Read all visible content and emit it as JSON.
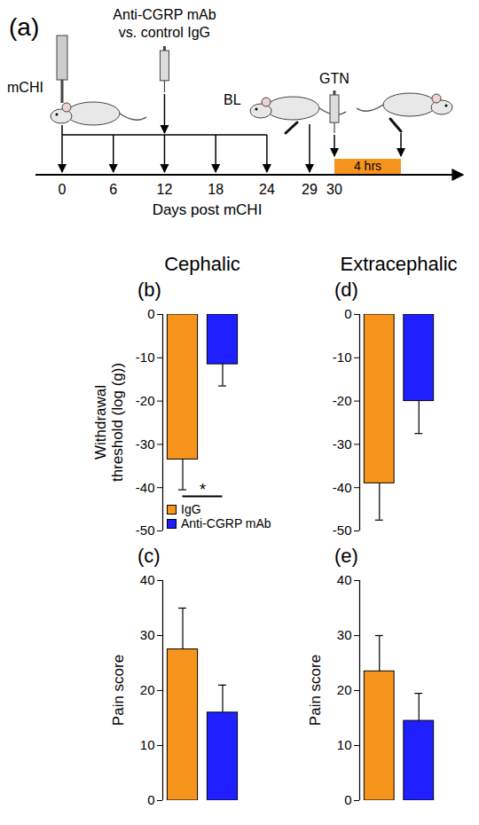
{
  "diagram": {
    "panel": "(a)",
    "axis_title": "Days post mCHI",
    "ticks": [
      0,
      6,
      12,
      18,
      24,
      29,
      30
    ],
    "repeat_days": [
      0,
      6,
      12,
      18,
      24
    ],
    "events": [
      {
        "day": 0,
        "label": "mCHI"
      },
      {
        "day": 12,
        "label": "Anti-CGRP mAb vs. control IgG"
      },
      {
        "day": 29,
        "label": "BL"
      },
      {
        "day": 30,
        "label": "GTN"
      }
    ],
    "interval": {
      "start_day": 30,
      "label": "4 hrs"
    }
  },
  "chart_data": [
    {
      "type": "bar",
      "panel": "(b)",
      "title": "Cephalic",
      "ylabel": "Withdrawal threshold (log (g))",
      "categories": [
        "IgG",
        "Anti-CGRP mAb"
      ],
      "values": [
        -33.5,
        -11.5
      ],
      "errors": [
        7,
        5
      ],
      "colors": [
        "#f7941d",
        "#1f1fff"
      ],
      "ylim": [
        -50,
        0
      ],
      "yticks": [
        -50,
        -40,
        -30,
        -20,
        -10,
        0
      ],
      "tick_labels": "y",
      "legend": "bottom-left",
      "annotations": [
        {
          "text": "*",
          "between": [
            "IgG",
            "Anti-CGRP mAb"
          ],
          "y": -42
        }
      ]
    },
    {
      "type": "bar",
      "panel": "(c)",
      "ylabel": "Pain score",
      "categories": [
        "IgG",
        "Anti-CGRP mAb"
      ],
      "values": [
        27.5,
        16
      ],
      "errors": [
        7.5,
        5
      ],
      "colors": [
        "#f7941d",
        "#1f1fff"
      ],
      "ylim": [
        0,
        40
      ],
      "yticks": [
        0,
        10,
        20,
        30,
        40
      ],
      "tick_labels": "y"
    },
    {
      "type": "bar",
      "panel": "(d)",
      "title": "Extracephalic",
      "categories": [
        "IgG",
        "Anti-CGRP mAb"
      ],
      "values": [
        -39,
        -20
      ],
      "errors": [
        8.5,
        7.5
      ],
      "colors": [
        "#f7941d",
        "#1f1fff"
      ],
      "ylim": [
        -50,
        0
      ],
      "yticks": [
        -50,
        -40,
        -30,
        -20,
        -10,
        0
      ],
      "tick_labels": "y"
    },
    {
      "type": "bar",
      "panel": "(e)",
      "ylabel": "Pain score",
      "categories": [
        "IgG",
        "Anti-CGRP mAb"
      ],
      "values": [
        23.5,
        14.5
      ],
      "errors": [
        6.5,
        5
      ],
      "colors": [
        "#f7941d",
        "#1f1fff"
      ],
      "ylim": [
        0,
        40
      ],
      "yticks": [
        0,
        10,
        20,
        30,
        40
      ],
      "tick_labels": "y"
    }
  ]
}
